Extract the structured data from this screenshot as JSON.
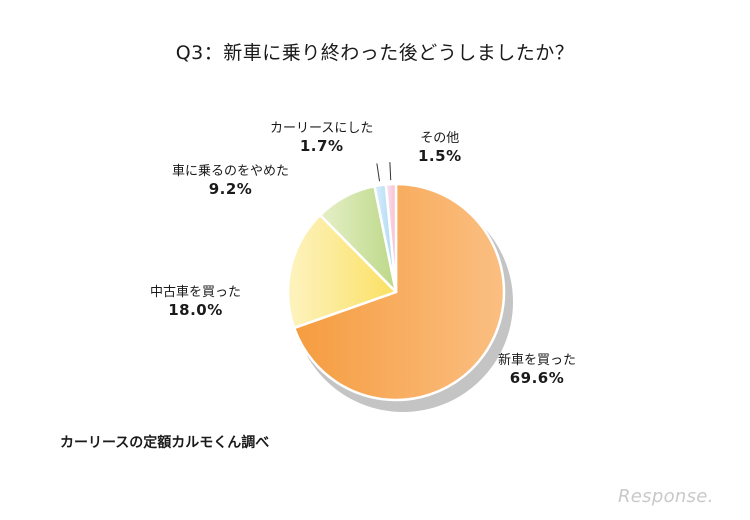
{
  "chart_data": {
    "type": "pie",
    "title": "Q3：新車に乗り終わった後どうしましたか？",
    "slices": [
      {
        "label": "新車を買った",
        "value": 69.6,
        "display": "69.6%",
        "color_light": "#fbbf82",
        "color_dark": "#f59c3f"
      },
      {
        "label": "中古車を買った",
        "value": 18.0,
        "display": "18.0%",
        "color_light": "#fdf3c0",
        "color_dark": "#fbe062"
      },
      {
        "label": "車に乗るのをやめた",
        "value": 9.2,
        "display": "9.2%",
        "color_light": "#e6f0c8",
        "color_dark": "#bcd888"
      },
      {
        "label": "カーリースにした",
        "value": 1.7,
        "display": "1.7%",
        "color_light": "#d8eefb",
        "color_dark": "#a9d6f3"
      },
      {
        "label": "その他",
        "value": 1.5,
        "display": "1.5%",
        "color_light": "#fce4ec",
        "color_dark": "#f6bfd3"
      }
    ]
  },
  "source": "カーリースの定額カルモくん調べ",
  "logo": "Response."
}
